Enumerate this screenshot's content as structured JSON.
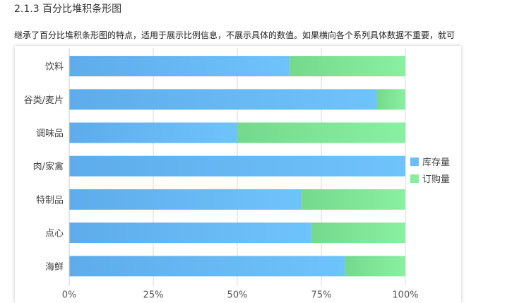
{
  "page": {
    "section_title": "2.1.3 百分比堆积条形图",
    "description": "继承了百分比堆积条形图的特点，适用于展示比例信息，不展示具体的数值。如果横向各个系列具体数据不重要，就可"
  },
  "chart_data": {
    "type": "bar",
    "orientation": "horizontal",
    "stacked": "percent",
    "title": "",
    "xlabel": "",
    "ylabel": "",
    "categories": [
      "饮料",
      "谷类/麦片",
      "调味品",
      "肉/家禽",
      "特制品",
      "点心",
      "海鲜"
    ],
    "series": [
      {
        "name": "库存量",
        "values": [
          65.5,
          91.5,
          50,
          100,
          69,
          72,
          82
        ],
        "color": "#6cbcf5"
      },
      {
        "name": "订购量",
        "values": [
          34.5,
          8.5,
          50,
          0,
          31,
          28,
          18
        ],
        "color": "#88ec9f"
      }
    ],
    "xlim": [
      0,
      100
    ],
    "xticks": [
      "0%",
      "25%",
      "50%",
      "75%",
      "100%"
    ],
    "grid": true,
    "legend": "right"
  }
}
